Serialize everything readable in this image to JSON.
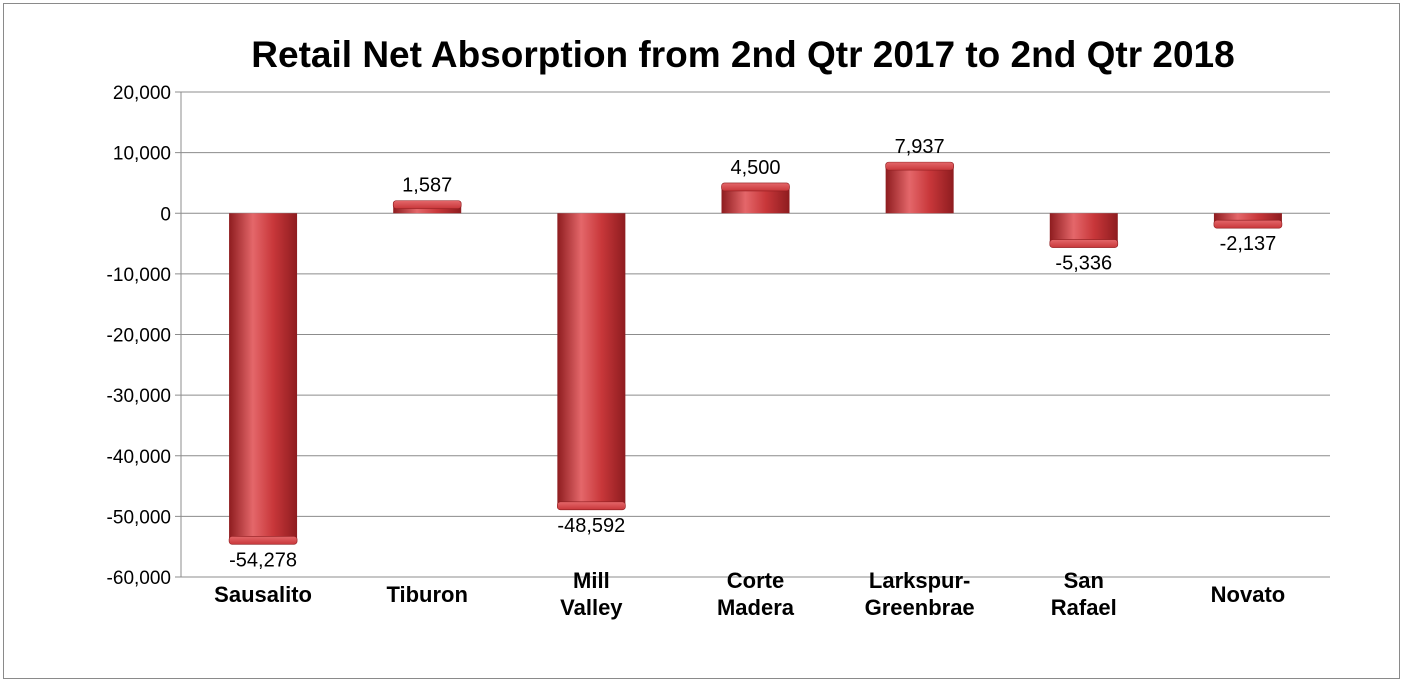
{
  "chart_data": {
    "type": "bar",
    "title": "Retail Net Absorption from 2nd Qtr 2017 to 2nd Qtr 2018",
    "xlabel": "",
    "ylabel": "",
    "categories": [
      [
        "Sausalito"
      ],
      [
        "Tiburon"
      ],
      [
        "Mill",
        "Valley"
      ],
      [
        "Corte",
        "Madera"
      ],
      [
        "Larkspur-",
        "Greenbrae"
      ],
      [
        "San",
        "Rafael"
      ],
      [
        "Novato"
      ]
    ],
    "values": [
      -54278,
      1587,
      -48592,
      4500,
      7937,
      -5336,
      -2137
    ],
    "data_labels": [
      "-54,278",
      "1,587",
      "-48,592",
      "4,500",
      "7,937",
      "-5,336",
      "-2,137"
    ],
    "ylim": [
      -60000,
      20000
    ],
    "yticks": [
      20000,
      10000,
      0,
      -10000,
      -20000,
      -30000,
      -40000,
      -50000,
      -60000
    ],
    "ytick_labels": [
      "20,000",
      "10,000",
      "0",
      "-10,000",
      "-20,000",
      "-30,000",
      "-40,000",
      "-50,000",
      "-60,000"
    ],
    "grid": true,
    "legend": "none",
    "bar_color": "#c8373a",
    "bar_color_dark": "#8e1c1f",
    "bar_color_light": "#e4676a"
  }
}
